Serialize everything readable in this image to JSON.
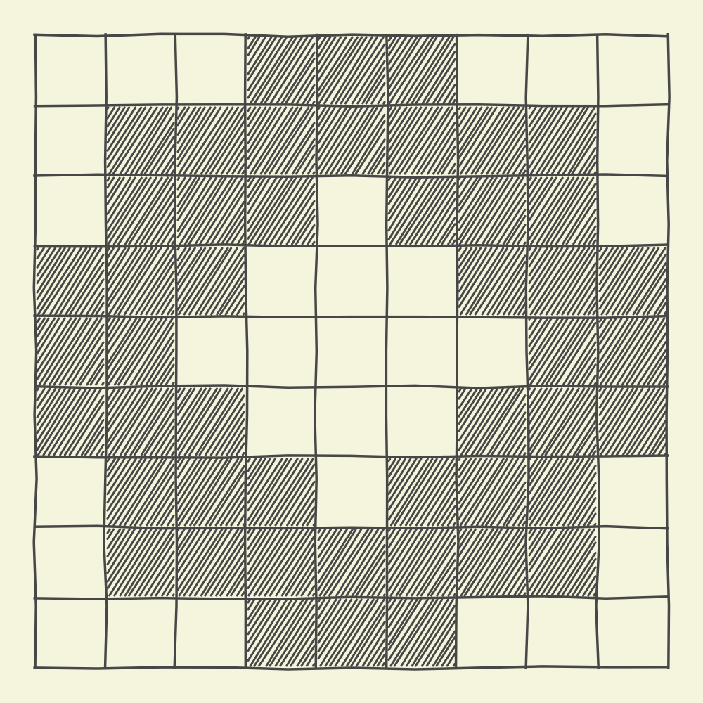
{
  "puzzle": {
    "rows": 9,
    "cols": 9,
    "colors": {
      "background": "#f5f5de",
      "ink": "#474747"
    },
    "filled_icon": "hatched-fill",
    "grid": [
      [
        0,
        0,
        0,
        1,
        1,
        1,
        0,
        0,
        0
      ],
      [
        0,
        1,
        1,
        1,
        1,
        1,
        1,
        1,
        0
      ],
      [
        0,
        1,
        1,
        1,
        0,
        1,
        1,
        1,
        0
      ],
      [
        1,
        1,
        1,
        0,
        0,
        0,
        1,
        1,
        1
      ],
      [
        1,
        1,
        0,
        0,
        0,
        0,
        0,
        1,
        1
      ],
      [
        1,
        1,
        1,
        0,
        0,
        0,
        1,
        1,
        1
      ],
      [
        0,
        1,
        1,
        1,
        0,
        1,
        1,
        1,
        0
      ],
      [
        0,
        1,
        1,
        1,
        1,
        1,
        1,
        1,
        0
      ],
      [
        0,
        0,
        0,
        1,
        1,
        1,
        0,
        0,
        0
      ]
    ]
  }
}
